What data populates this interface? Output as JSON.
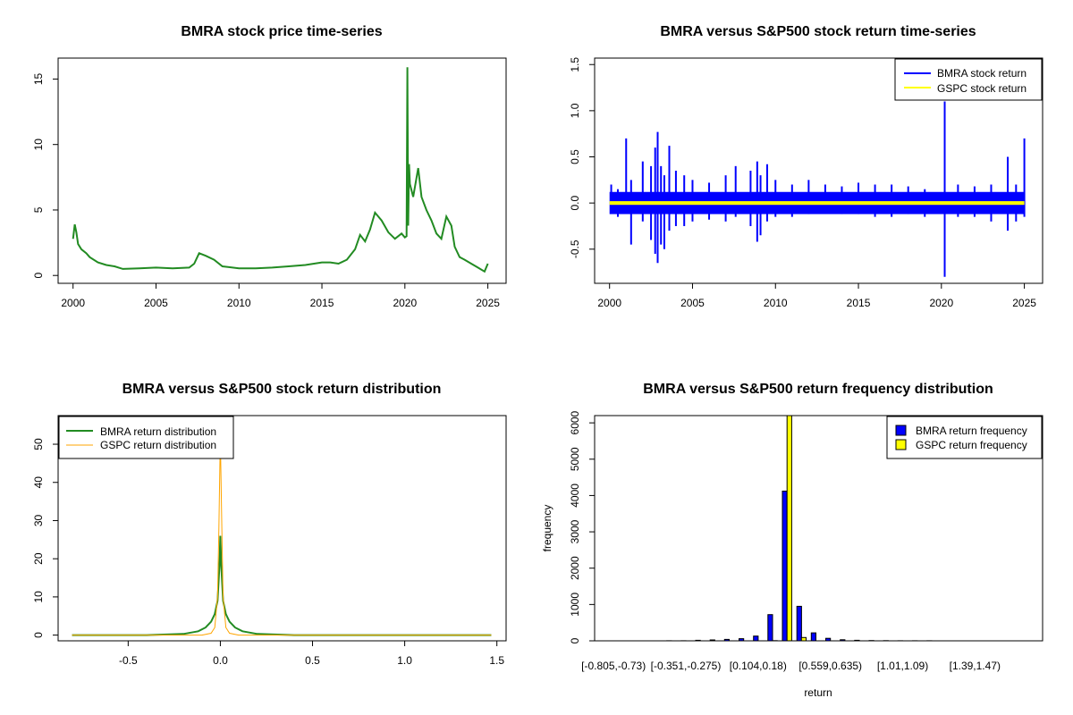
{
  "chart_data": [
    {
      "type": "line",
      "title": "BMRA stock price time-series",
      "xlabel": "",
      "ylabel": "",
      "xlim": [
        1999.1,
        2026.1
      ],
      "ylim": [
        -0.6,
        16.6
      ],
      "xticks": [
        "2000",
        "2005",
        "2010",
        "2015",
        "2020",
        "2025"
      ],
      "yticks": [
        "0",
        "5",
        "10",
        "15"
      ],
      "series": [
        {
          "color": "#228B22",
          "x": [
            2000.0,
            2000.1,
            2000.2,
            2000.3,
            2000.5,
            2000.8,
            2001.0,
            2001.5,
            2002.0,
            2002.5,
            2003.0,
            2004.0,
            2005.0,
            2006.0,
            2007.0,
            2007.3,
            2007.6,
            2008.0,
            2008.5,
            2009.0,
            2010.0,
            2011.0,
            2012.0,
            2013.0,
            2014.0,
            2015.0,
            2015.5,
            2016.0,
            2016.5,
            2017.0,
            2017.3,
            2017.6,
            2017.9,
            2018.2,
            2018.6,
            2019.0,
            2019.4,
            2019.8,
            2020.0,
            2020.1,
            2020.15,
            2020.2,
            2020.25,
            2020.3,
            2020.5,
            2020.8,
            2021.0,
            2021.3,
            2021.6,
            2021.9,
            2022.2,
            2022.5,
            2022.8,
            2023.0,
            2023.3,
            2023.6,
            2024.0,
            2024.4,
            2024.8,
            2025.0
          ],
          "y": [
            2.8,
            3.9,
            3.3,
            2.4,
            2.0,
            1.7,
            1.4,
            1.0,
            0.8,
            0.7,
            0.5,
            0.55,
            0.6,
            0.55,
            0.6,
            0.9,
            1.7,
            1.5,
            1.2,
            0.7,
            0.55,
            0.55,
            0.6,
            0.7,
            0.8,
            1.0,
            1.0,
            0.9,
            1.2,
            2.0,
            3.1,
            2.6,
            3.5,
            4.8,
            4.2,
            3.3,
            2.8,
            3.2,
            2.9,
            3.0,
            15.9,
            3.8,
            8.5,
            7.0,
            6.0,
            8.2,
            6.0,
            5.0,
            4.2,
            3.2,
            2.8,
            4.5,
            3.8,
            2.2,
            1.4,
            1.2,
            0.9,
            0.6,
            0.3,
            0.9
          ]
        }
      ]
    },
    {
      "type": "line",
      "title": "BMRA versus S&P500 stock return time-series",
      "xlabel": "",
      "ylabel": "",
      "xlim": [
        1999.1,
        2026.1
      ],
      "ylim": [
        -0.87,
        1.57
      ],
      "xticks": [
        "2000",
        "2005",
        "2010",
        "2015",
        "2020",
        "2025"
      ],
      "yticks": [
        "-0.5",
        "0.0",
        "0.5",
        "1.0",
        "1.5"
      ],
      "legend": "top-right",
      "series": [
        {
          "name": "BMRA stock return",
          "color": "#0000FF",
          "spikes": [
            [
              2000.1,
              0.2,
              -0.1
            ],
            [
              2000.5,
              0.15,
              -0.15
            ],
            [
              2001.0,
              0.7,
              -0.1
            ],
            [
              2001.3,
              0.25,
              -0.45
            ],
            [
              2002.0,
              0.45,
              -0.2
            ],
            [
              2002.5,
              0.4,
              -0.4
            ],
            [
              2002.75,
              0.6,
              -0.55
            ],
            [
              2002.9,
              0.77,
              -0.65
            ],
            [
              2003.1,
              0.4,
              -0.45
            ],
            [
              2003.3,
              0.3,
              -0.5
            ],
            [
              2003.6,
              0.62,
              -0.3
            ],
            [
              2004.0,
              0.35,
              -0.25
            ],
            [
              2004.5,
              0.3,
              -0.25
            ],
            [
              2005.0,
              0.25,
              -0.2
            ],
            [
              2006.0,
              0.22,
              -0.18
            ],
            [
              2007.0,
              0.3,
              -0.2
            ],
            [
              2007.6,
              0.4,
              -0.15
            ],
            [
              2008.5,
              0.35,
              -0.25
            ],
            [
              2008.9,
              0.45,
              -0.42
            ],
            [
              2009.1,
              0.3,
              -0.35
            ],
            [
              2009.5,
              0.42,
              -0.2
            ],
            [
              2010.0,
              0.25,
              -0.15
            ],
            [
              2011.0,
              0.2,
              -0.15
            ],
            [
              2012.0,
              0.25,
              -0.12
            ],
            [
              2013.0,
              0.2,
              -0.1
            ],
            [
              2014.0,
              0.18,
              -0.12
            ],
            [
              2015.0,
              0.22,
              -0.12
            ],
            [
              2016.0,
              0.2,
              -0.15
            ],
            [
              2017.0,
              0.2,
              -0.15
            ],
            [
              2018.0,
              0.18,
              -0.12
            ],
            [
              2019.0,
              0.15,
              -0.15
            ],
            [
              2020.2,
              1.1,
              -0.8
            ],
            [
              2021.0,
              0.2,
              -0.15
            ],
            [
              2022.0,
              0.18,
              -0.15
            ],
            [
              2023.0,
              0.2,
              -0.2
            ],
            [
              2024.0,
              0.5,
              -0.3
            ],
            [
              2024.5,
              0.2,
              -0.2
            ],
            [
              2025.0,
              0.7,
              -0.15
            ]
          ],
          "band": [
            0.12,
            -0.12
          ]
        },
        {
          "name": "GSPC stock return",
          "color": "#FFFF00",
          "band": [
            0.02,
            -0.02
          ]
        }
      ]
    },
    {
      "type": "line",
      "title": "BMRA versus S&P500 stock return distribution",
      "xlabel": "",
      "ylabel": "",
      "xlim": [
        -0.88,
        1.55
      ],
      "ylim": [
        -1.5,
        57.5
      ],
      "xticks": [
        "-0.5",
        "0.0",
        "0.5",
        "1.0",
        "1.5"
      ],
      "yticks": [
        "0",
        "10",
        "20",
        "30",
        "40",
        "50"
      ],
      "legend": "top-left",
      "series": [
        {
          "name": "BMRA return distribution",
          "color": "#228B22",
          "x": [
            -0.805,
            -0.4,
            -0.2,
            -0.12,
            -0.08,
            -0.05,
            -0.03,
            -0.015,
            -0.005,
            0.0,
            0.005,
            0.015,
            0.03,
            0.05,
            0.08,
            0.12,
            0.2,
            0.4,
            1.0,
            1.47
          ],
          "y": [
            0,
            0,
            0.3,
            1.0,
            2.0,
            3.5,
            5.5,
            9.0,
            18.0,
            26.0,
            18.0,
            9.0,
            5.5,
            3.5,
            2.0,
            1.0,
            0.3,
            0,
            0,
            0
          ]
        },
        {
          "name": "GSPC return distribution",
          "color": "#FFA500",
          "x": [
            -0.805,
            -0.1,
            -0.05,
            -0.03,
            -0.015,
            -0.008,
            0.0,
            0.008,
            0.015,
            0.03,
            0.05,
            0.1,
            1.47
          ],
          "y": [
            0,
            0,
            0.5,
            2.0,
            10.0,
            28.0,
            52.0,
            28.0,
            10.0,
            2.0,
            0.5,
            0,
            0
          ]
        }
      ]
    },
    {
      "type": "bar",
      "title": "BMRA versus S&P500 return frequency distribution",
      "xlabel": "return",
      "ylabel": "frequency",
      "ylim": [
        0,
        6200
      ],
      "yticks": [
        "0",
        "1000",
        "2000",
        "3000",
        "4000",
        "5000",
        "6000"
      ],
      "xtick_labels": [
        "[-0.805,-0.73)",
        "[-0.351,-0.275)",
        "[0.104,0.18)",
        "[0.559,0.635)",
        "[1.01,1.09)",
        "[1.39,1.47)"
      ],
      "legend": "top-right",
      "n_bins": 30,
      "series": [
        {
          "name": "BMRA return frequency",
          "color": "#0000FF",
          "values": [
            1,
            1,
            1,
            1,
            2,
            3,
            15,
            25,
            40,
            60,
            130,
            720,
            4120,
            950,
            220,
            70,
            30,
            15,
            8,
            5,
            3,
            2,
            2,
            1,
            1,
            1,
            1,
            1,
            1,
            1
          ]
        },
        {
          "name": "GSPC return frequency",
          "color": "#FFFF00",
          "values": [
            0,
            0,
            0,
            0,
            0,
            0,
            0,
            0,
            0,
            0,
            0,
            5,
            6200,
            90,
            0,
            0,
            0,
            0,
            0,
            0,
            0,
            0,
            0,
            0,
            0,
            0,
            0,
            0,
            0,
            0
          ]
        }
      ]
    }
  ]
}
